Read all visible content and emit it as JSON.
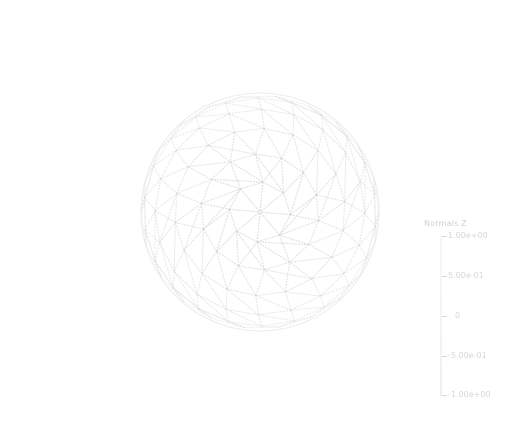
{
  "scene": {
    "object": "wireframe-sphere",
    "edge_color": "#d2d2d2",
    "background": "#ffffff"
  },
  "legend": {
    "title": "Normals Z",
    "ticks": [
      "1.00e+00",
      "5.00e-01",
      "0",
      "-5.00e-01",
      "-1.00e+00"
    ]
  }
}
